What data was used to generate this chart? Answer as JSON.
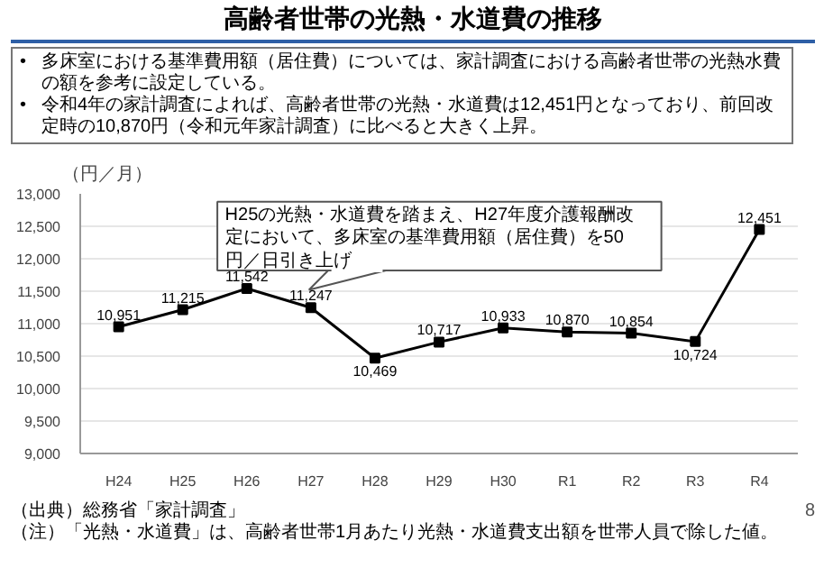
{
  "chart_data": {
    "type": "line",
    "title": "高齢者世帯の光熱・水道費の推移",
    "ylabel": "（円／月）",
    "categories": [
      "H24",
      "H25",
      "H26",
      "H27",
      "H28",
      "H29",
      "H30",
      "R1",
      "R2",
      "R3",
      "R4"
    ],
    "series": [
      {
        "color": "#000000",
        "values": [
          10951,
          11215,
          11542,
          11247,
          10469,
          10717,
          10933,
          10870,
          10854,
          10724,
          12451
        ],
        "value_labels": [
          "10,951",
          "11,215",
          "11,542",
          "11,247",
          "10,469",
          "10,717",
          "10,933",
          "10,870",
          "10,854",
          "10,724",
          "12,451"
        ]
      }
    ],
    "ylim": [
      9000,
      13000
    ],
    "yticks": [
      {
        "value": 9000,
        "label": "9,000"
      },
      {
        "value": 9500,
        "label": "9,500"
      },
      {
        "value": 10000,
        "label": "10,000"
      },
      {
        "value": 10500,
        "label": "10,500"
      },
      {
        "value": 11000,
        "label": "11,000"
      },
      {
        "value": 11500,
        "label": "11,500"
      },
      {
        "value": 12000,
        "label": "12,000"
      },
      {
        "value": 12500,
        "label": "12,500"
      },
      {
        "value": 13000,
        "label": "13,000"
      }
    ],
    "grid": "y",
    "marker": "square",
    "line_style": "solid",
    "annotations": [
      "•",
      "多床室における基準費用額（居住費）については、家計調査における高齢者世帯の光熱水費の額を参考に設定している。",
      "•",
      "令和4年の家計調査によれば、高齢者世帯の光熱・水道費は12,451円となっており、前回改定時の10,870円（令和元年家計調査）に比べると大きく上昇。",
      "H25の光熱・水道費を踏まえ、H27年度介護報酬改定において、多床室の基準費用額（居住費）を50円／日引き上げ",
      "（出典）総務省「家計調査」",
      "（注）「光熱・水道費」は、高齢者世帯1月あたり光熱・水道費支出額を世帯人員で除した値。",
      "8"
    ]
  }
}
